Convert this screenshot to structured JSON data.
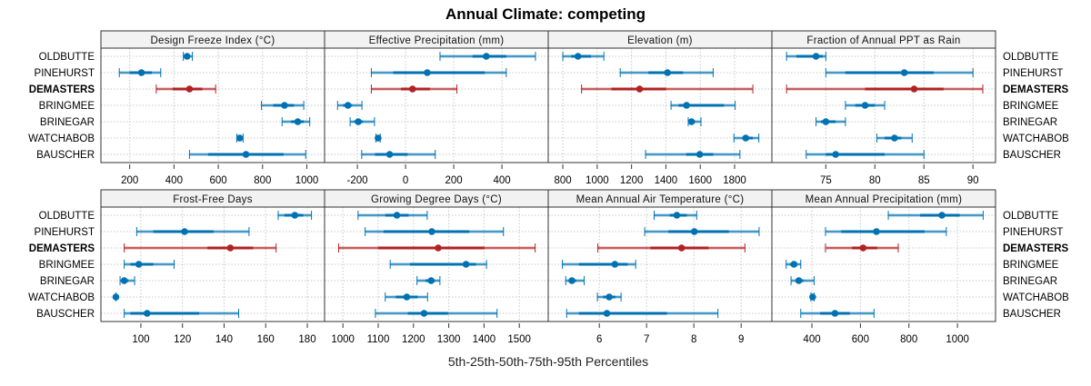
{
  "chart_data": {
    "type": "dotplot-percentiles",
    "title": "Annual Climate: competing",
    "xlabel": "5th-25th-50th-75th-95th Percentiles",
    "ylabel": "",
    "grid": true,
    "row_labels": [
      "OLDBUTTE",
      "PINEHURST",
      "DEMASTERS",
      "BRINGMEE",
      "BRINEGAR",
      "WATCHABOB",
      "BAUSCHER"
    ],
    "highlight_row": "DEMASTERS",
    "colors": {
      "default": "#0072B2",
      "highlight": "#B22222",
      "strip_bg": "#F2F2F2",
      "grid": "#C8C8C8",
      "frame": "#333333"
    },
    "percentiles": [
      "p5",
      "p25",
      "p50",
      "p75",
      "p95"
    ],
    "panels": [
      {
        "title": "Design Freeze Index (°C)",
        "xlim": [
          70,
          1080
        ],
        "ticks": [
          200,
          400,
          600,
          800,
          1000
        ],
        "values": [
          [
            442,
            452,
            459,
            468,
            483
          ],
          [
            153,
            200,
            253,
            300,
            340
          ],
          [
            320,
            394,
            470,
            528,
            588
          ],
          [
            795,
            848,
            899,
            942,
            986
          ],
          [
            888,
            929,
            959,
            986,
            1013
          ],
          [
            684,
            690,
            697,
            704,
            712
          ],
          [
            470,
            554,
            725,
            895,
            995
          ]
        ]
      },
      {
        "title": "Effective Precipitation (mm)",
        "xlim": [
          -336,
          592
        ],
        "ticks": [
          -200,
          0,
          200,
          400
        ],
        "values": [
          [
            143,
            278,
            335,
            418,
            539
          ],
          [
            -142,
            -51,
            90,
            329,
            418
          ],
          [
            -142,
            -19,
            29,
            101,
            213
          ],
          [
            -282,
            -259,
            -239,
            -222,
            -181
          ],
          [
            -230,
            -213,
            -196,
            -177,
            -129
          ],
          [
            -123,
            -118,
            -114,
            -110,
            -105
          ],
          [
            -182,
            -127,
            -66,
            9,
            123
          ]
        ]
      },
      {
        "title": "Elevation (m)",
        "xlim": [
          715,
          2017
        ],
        "ticks": [
          800,
          1000,
          1200,
          1400,
          1600,
          1800
        ],
        "values": [
          [
            800,
            849,
            888,
            964,
            1039
          ],
          [
            1134,
            1298,
            1409,
            1500,
            1675
          ],
          [
            909,
            1083,
            1247,
            1400,
            1906
          ],
          [
            1430,
            1474,
            1520,
            1738,
            1803
          ],
          [
            1530,
            1540,
            1549,
            1570,
            1604
          ],
          [
            1796,
            1844,
            1865,
            1906,
            1941
          ],
          [
            1282,
            1518,
            1597,
            1676,
            1831
          ]
        ]
      },
      {
        "title": "Fraction of Annual PPT as Rain",
        "xlim": [
          69.5,
          92.3
        ],
        "ticks": [
          75,
          80,
          85,
          90
        ],
        "values": [
          [
            71,
            72,
            74,
            74.7,
            75
          ],
          [
            75,
            77,
            83,
            86,
            90
          ],
          [
            71,
            79,
            84,
            87,
            91
          ],
          [
            77,
            78,
            79,
            80,
            81
          ],
          [
            74,
            74.5,
            75,
            76,
            77
          ],
          [
            80.2,
            81,
            82,
            82.7,
            83.8
          ],
          [
            73,
            75,
            76,
            81,
            85
          ]
        ]
      },
      {
        "title": "Frost-Free Days",
        "xlim": [
          80.8,
          188.3
        ],
        "ticks": [
          100,
          120,
          140,
          160,
          180
        ],
        "values": [
          [
            166,
            169,
            174,
            178,
            182
          ],
          [
            98,
            106,
            121,
            135,
            152
          ],
          [
            92,
            132,
            143,
            154,
            165
          ],
          [
            92,
            95,
            99,
            106,
            116
          ],
          [
            90,
            91,
            92,
            94,
            97
          ],
          [
            88,
            88,
            88,
            88,
            88
          ],
          [
            92,
            95,
            103,
            128,
            147
          ]
        ]
      },
      {
        "title": "Growing Degree Days (°C)",
        "xlim": [
          948,
          1582
        ],
        "ticks": [
          1000,
          1100,
          1200,
          1300,
          1400,
          1500
        ],
        "values": [
          [
            1043,
            1120,
            1153,
            1186,
            1239
          ],
          [
            1063,
            1115,
            1252,
            1358,
            1455
          ],
          [
            988,
            1100,
            1270,
            1401,
            1545
          ],
          [
            1134,
            1190,
            1349,
            1377,
            1407
          ],
          [
            1210,
            1234,
            1250,
            1261,
            1275
          ],
          [
            1120,
            1150,
            1181,
            1212,
            1240
          ],
          [
            1092,
            1184,
            1230,
            1298,
            1437
          ]
        ]
      },
      {
        "title": "Mean Annual Air Temperature (°C)",
        "xlim": [
          4.92,
          9.65
        ],
        "ticks": [
          6,
          7,
          8,
          9
        ],
        "values": [
          [
            7.16,
            7.49,
            7.64,
            7.85,
            8.06
          ],
          [
            6.96,
            7.46,
            8.01,
            8.74,
            9.38
          ],
          [
            5.97,
            7.08,
            7.74,
            8.31,
            9.08
          ],
          [
            5.22,
            5.57,
            6.33,
            6.6,
            6.77
          ],
          [
            5.29,
            5.35,
            5.42,
            5.51,
            5.68
          ],
          [
            5.96,
            6.08,
            6.21,
            6.34,
            6.46
          ],
          [
            5.31,
            5.57,
            6.16,
            7.43,
            8.51
          ]
        ]
      },
      {
        "title": "Mean Annual Precipitation (mm)",
        "xlim": [
          235,
          1157
        ],
        "ticks": [
          400,
          600,
          800,
          1000
        ],
        "values": [
          [
            715,
            846,
            936,
            1009,
            1106
          ],
          [
            456,
            521,
            666,
            865,
            954
          ],
          [
            456,
            565,
            611,
            669,
            756
          ],
          [
            294,
            309,
            326,
            340,
            354
          ],
          [
            314,
            334,
            346,
            365,
            409
          ],
          [
            396,
            400,
            403,
            406,
            409
          ],
          [
            354,
            434,
            495,
            556,
            656
          ]
        ]
      }
    ]
  }
}
